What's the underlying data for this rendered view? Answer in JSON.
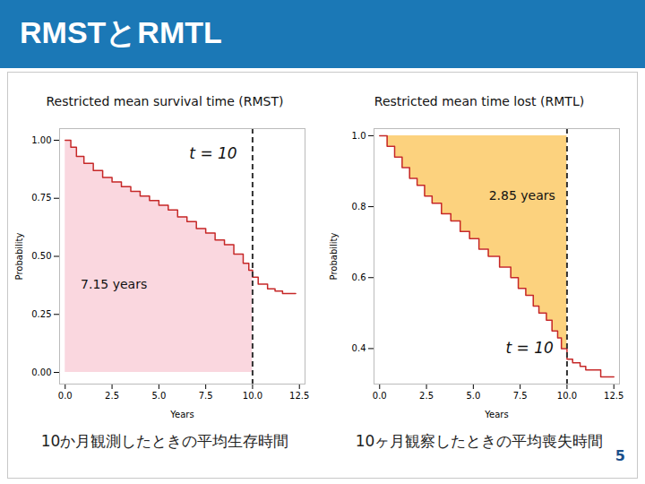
{
  "slide": {
    "title": "RMSTとRMTL",
    "page": "5"
  },
  "chart_data": [
    {
      "type": "step",
      "title": "Restricted mean survival time (RMST)",
      "caption": "10か月観測したときの平均生存時間",
      "xlabel": "Years",
      "ylabel": "Probability",
      "x": [
        0,
        0.3,
        0.6,
        1.0,
        1.5,
        2.0,
        2.5,
        3.0,
        3.5,
        4.0,
        4.5,
        5.0,
        5.5,
        6.0,
        6.5,
        7.0,
        7.5,
        8.0,
        8.5,
        9.0,
        9.5,
        9.8,
        10.0,
        10.3,
        10.8,
        11.2,
        11.6,
        12.3
      ],
      "values": [
        1.0,
        0.97,
        0.93,
        0.9,
        0.87,
        0.84,
        0.82,
        0.8,
        0.78,
        0.76,
        0.74,
        0.72,
        0.7,
        0.67,
        0.65,
        0.62,
        0.6,
        0.57,
        0.55,
        0.51,
        0.47,
        0.44,
        0.41,
        0.38,
        0.36,
        0.35,
        0.34,
        0.34
      ],
      "color": "#c62828",
      "xlim": [
        -0.3,
        12.8
      ],
      "ylim": [
        -0.05,
        1.05
      ],
      "xticks": [
        {
          "value": 0,
          "label": "0.0"
        },
        {
          "value": 2.5,
          "label": "2.5"
        },
        {
          "value": 5,
          "label": "5.0"
        },
        {
          "value": 7.5,
          "label": "7.5"
        },
        {
          "value": 10,
          "label": "10.0"
        },
        {
          "value": 12.5,
          "label": "12.5"
        }
      ],
      "yticks": [
        {
          "value": 0,
          "label": "0.00"
        },
        {
          "value": 0.25,
          "label": "0.25"
        },
        {
          "value": 0.5,
          "label": "0.50"
        },
        {
          "value": 0.75,
          "label": "0.75"
        },
        {
          "value": 1,
          "label": "1.00"
        }
      ],
      "area": {
        "color": "#fad7df",
        "side": "below",
        "text": "7.15 years",
        "text_x": 2.6,
        "text_y": 0.38
      },
      "cutoff": {
        "x": 10,
        "line_style": "dashed",
        "label": "t = 10",
        "label_x": 7.9,
        "label_y": 0.94
      }
    },
    {
      "type": "step",
      "title": "Restricted mean time lost (RMTL)",
      "caption": "10ヶ月観察したときの平均喪失時間",
      "xlabel": "Years",
      "ylabel": "Probability",
      "x": [
        0,
        0.4,
        0.8,
        1.2,
        1.6,
        2.0,
        2.4,
        2.8,
        3.3,
        3.8,
        4.3,
        4.8,
        5.3,
        5.8,
        6.4,
        7.0,
        7.4,
        7.8,
        8.2,
        8.5,
        8.9,
        9.2,
        9.5,
        9.7,
        10.0,
        10.3,
        10.7,
        11.0,
        11.8,
        12.5
      ],
      "values": [
        1.0,
        0.97,
        0.94,
        0.91,
        0.88,
        0.86,
        0.83,
        0.81,
        0.78,
        0.76,
        0.73,
        0.71,
        0.68,
        0.66,
        0.63,
        0.6,
        0.57,
        0.55,
        0.52,
        0.5,
        0.48,
        0.45,
        0.43,
        0.4,
        0.37,
        0.36,
        0.35,
        0.34,
        0.32,
        0.32
      ],
      "color": "#c62828",
      "xlim": [
        -0.3,
        12.8
      ],
      "ylim": [
        0.3,
        1.02
      ],
      "xticks": [
        {
          "value": 0,
          "label": "0.0"
        },
        {
          "value": 2.5,
          "label": "2.5"
        },
        {
          "value": 5,
          "label": "5.0"
        },
        {
          "value": 7.5,
          "label": "7.5"
        },
        {
          "value": 10,
          "label": "10.0"
        },
        {
          "value": 12.5,
          "label": "12.5"
        }
      ],
      "yticks": [
        {
          "value": 0.4,
          "label": "0.4"
        },
        {
          "value": 0.6,
          "label": "0.6"
        },
        {
          "value": 0.8,
          "label": "0.8"
        },
        {
          "value": 1,
          "label": "1.0"
        }
      ],
      "area": {
        "color": "#fcd27e",
        "side": "above",
        "text": "2.85 years",
        "text_x": 7.6,
        "text_y": 0.83
      },
      "cutoff": {
        "x": 10,
        "line_style": "dashed",
        "label": "t = 10",
        "label_x": 8.0,
        "label_y": 0.4
      }
    }
  ]
}
